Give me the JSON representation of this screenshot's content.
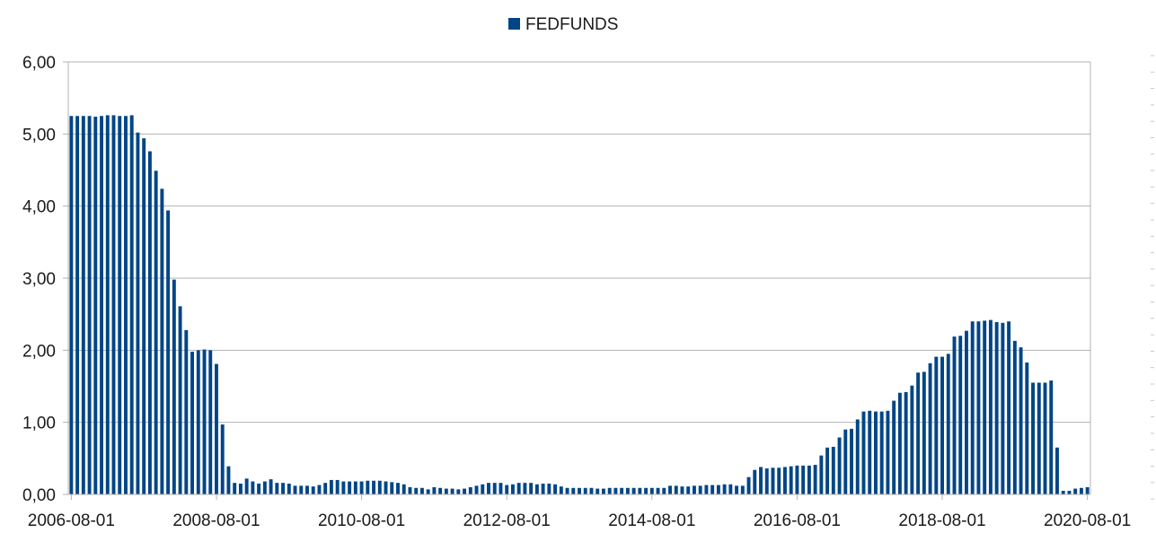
{
  "chart_data": {
    "type": "bar",
    "title": "",
    "xlabel": "",
    "ylabel": "",
    "ylim": [
      0,
      6
    ],
    "grid": true,
    "legend_position": "top-center",
    "legend_swatch_color": "#004586",
    "bar_color": "#004586",
    "gridline_color": "#b3b3b3",
    "y_ticks": [
      "0,00",
      "1,00",
      "2,00",
      "3,00",
      "4,00",
      "5,00",
      "6,00"
    ],
    "x_tick_labels": [
      "2006-08-01",
      "2008-08-01",
      "2010-08-01",
      "2012-08-01",
      "2014-08-01",
      "2016-08-01",
      "2018-08-01",
      "2020-08-01"
    ],
    "x_start": "2006-08-01",
    "x_end": "2020-08-01",
    "series": [
      {
        "name": "FEDFUNDS",
        "color": "#004586",
        "values": [
          5.25,
          5.25,
          5.25,
          5.25,
          5.24,
          5.25,
          5.26,
          5.26,
          5.25,
          5.25,
          5.26,
          5.02,
          4.94,
          4.76,
          4.49,
          4.24,
          3.94,
          2.98,
          2.61,
          2.28,
          1.98,
          2.0,
          2.01,
          2.0,
          1.81,
          0.97,
          0.39,
          0.16,
          0.15,
          0.22,
          0.18,
          0.15,
          0.18,
          0.21,
          0.16,
          0.16,
          0.15,
          0.12,
          0.12,
          0.12,
          0.11,
          0.13,
          0.16,
          0.2,
          0.2,
          0.18,
          0.18,
          0.18,
          0.18,
          0.19,
          0.19,
          0.19,
          0.18,
          0.17,
          0.16,
          0.14,
          0.1,
          0.09,
          0.09,
          0.07,
          0.1,
          0.09,
          0.08,
          0.08,
          0.07,
          0.08,
          0.1,
          0.12,
          0.14,
          0.16,
          0.16,
          0.16,
          0.13,
          0.14,
          0.16,
          0.16,
          0.16,
          0.14,
          0.15,
          0.15,
          0.14,
          0.11,
          0.09,
          0.09,
          0.09,
          0.09,
          0.09,
          0.08,
          0.08,
          0.09,
          0.09,
          0.09,
          0.09,
          0.09,
          0.09,
          0.09,
          0.09,
          0.09,
          0.09,
          0.12,
          0.12,
          0.11,
          0.11,
          0.12,
          0.12,
          0.13,
          0.13,
          0.13,
          0.14,
          0.14,
          0.12,
          0.12,
          0.24,
          0.34,
          0.38,
          0.36,
          0.37,
          0.37,
          0.38,
          0.39,
          0.4,
          0.4,
          0.4,
          0.41,
          0.54,
          0.65,
          0.66,
          0.79,
          0.9,
          0.91,
          1.04,
          1.15,
          1.16,
          1.15,
          1.15,
          1.16,
          1.3,
          1.41,
          1.42,
          1.51,
          1.69,
          1.7,
          1.82,
          1.91,
          1.91,
          1.95,
          2.19,
          2.2,
          2.27,
          2.4,
          2.4,
          2.41,
          2.42,
          2.39,
          2.38,
          2.4,
          2.13,
          2.04,
          1.83,
          1.55,
          1.55,
          1.55,
          1.58,
          0.65,
          0.05,
          0.05,
          0.08,
          0.09,
          0.1
        ]
      }
    ]
  }
}
